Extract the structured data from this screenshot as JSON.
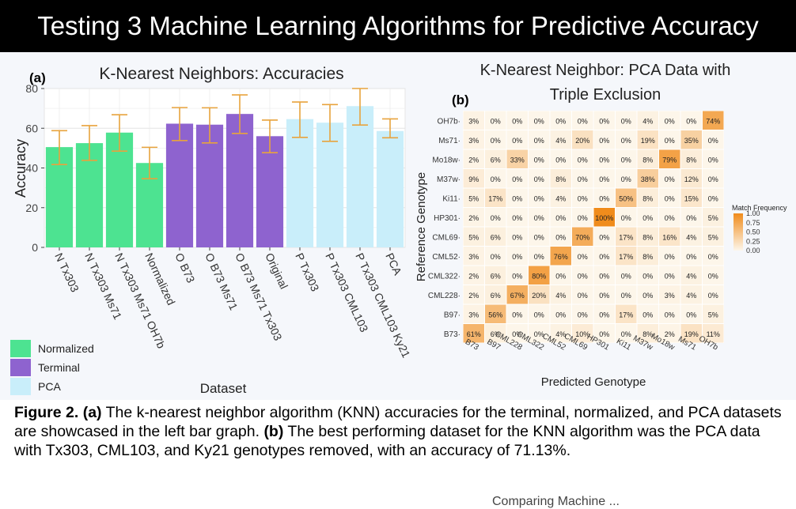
{
  "banner": {
    "title": "Testing 3 Machine Learning Algorithms for Predictive Accuracy"
  },
  "chart_data": [
    {
      "type": "bar",
      "panel_label": "(a)",
      "title": "K-Nearest Neighbors: Accuracies",
      "xlabel": "Dataset",
      "ylabel": "Accuracy",
      "ylim": [
        0,
        80
      ],
      "yticks": [
        0,
        20,
        40,
        60,
        80
      ],
      "grid": true,
      "categories": [
        "N Tx303",
        "N Tx303 Ms71",
        "N Tx303 Ms71 OH7b",
        "Normalized",
        "O B73",
        "O B73 Ms71",
        "O B73 Ms71 Tx303",
        "Original",
        "P Tx303",
        "P Tx303 CML103",
        "P Tx303 CML103 Ky21",
        "PCA"
      ],
      "values": [
        50.5,
        52.5,
        57.8,
        42.5,
        62.3,
        61.8,
        67.2,
        56.0,
        64.6,
        62.8,
        71.13,
        58.6
      ],
      "error_low": [
        41.7,
        43.8,
        48.5,
        34.6,
        53.8,
        52.6,
        57.4,
        47.7,
        55.4,
        53.4,
        61.6,
        55.2
      ],
      "error_high": [
        58.8,
        61.3,
        66.8,
        50.4,
        70.4,
        70.3,
        76.8,
        64.1,
        73.2,
        71.9,
        80.0,
        64.7
      ],
      "groups": [
        "Normalized",
        "Normalized",
        "Normalized",
        "Normalized",
        "Terminal",
        "Terminal",
        "Terminal",
        "Terminal",
        "PCA",
        "PCA",
        "PCA",
        "PCA"
      ],
      "legend": {
        "placement": "bottom-left",
        "entries": [
          {
            "name": "Normalized",
            "color": "#4de391"
          },
          {
            "name": "Terminal",
            "color": "#8e63cf"
          },
          {
            "name": "PCA",
            "color": "#c9eefa"
          }
        ]
      },
      "error_bar_color": "#e8a33d"
    },
    {
      "type": "heatmap",
      "panel_label": "(b)",
      "title": [
        "K-Nearest Neighbor: PCA Data with",
        "Triple Exclusion"
      ],
      "xlabel": "Predicted Genotype",
      "ylabel": "Reference Genotype",
      "x_categories": [
        "B73",
        "B97",
        "CML228",
        "CML322",
        "CML52",
        "CML69",
        "HP301",
        "Ki11",
        "M37w",
        "Mo18w",
        "Ms71",
        "OH7b"
      ],
      "y_categories_top_to_bottom": [
        "OH7b",
        "Ms71",
        "Mo18w",
        "M37w",
        "Ki11",
        "HP301",
        "CML69",
        "CML52",
        "CML322",
        "CML228",
        "B97",
        "B73"
      ],
      "values_percent": [
        [
          3,
          0,
          0,
          0,
          0,
          0,
          0,
          0,
          4,
          0,
          0,
          74
        ],
        [
          3,
          0,
          0,
          0,
          4,
          20,
          0,
          0,
          19,
          0,
          35,
          0
        ],
        [
          2,
          6,
          33,
          0,
          0,
          0,
          0,
          0,
          8,
          79,
          8,
          0
        ],
        [
          9,
          0,
          0,
          0,
          8,
          0,
          0,
          0,
          38,
          0,
          12,
          0
        ],
        [
          5,
          17,
          0,
          0,
          4,
          0,
          0,
          50,
          8,
          0,
          15,
          0
        ],
        [
          2,
          0,
          0,
          0,
          0,
          0,
          100,
          0,
          0,
          0,
          0,
          5
        ],
        [
          5,
          6,
          0,
          0,
          0,
          70,
          0,
          17,
          8,
          16,
          4,
          5
        ],
        [
          3,
          0,
          0,
          0,
          76,
          0,
          0,
          17,
          8,
          0,
          0,
          0
        ],
        [
          2,
          6,
          0,
          80,
          0,
          0,
          0,
          0,
          0,
          0,
          4,
          0
        ],
        [
          2,
          6,
          67,
          20,
          4,
          0,
          0,
          0,
          0,
          3,
          4,
          0
        ],
        [
          3,
          56,
          0,
          0,
          0,
          0,
          0,
          17,
          0,
          0,
          0,
          5
        ],
        [
          61,
          6,
          0,
          0,
          4,
          10,
          0,
          0,
          8,
          2,
          19,
          11
        ]
      ],
      "colorbar": {
        "title": "Match Frequency",
        "ticks": [
          "1.00",
          "0.75",
          "0.50",
          "0.25",
          "0.00"
        ],
        "low_color": "#fdf6ea",
        "high_color": "#f08c1c"
      }
    }
  ],
  "caption": {
    "fig_label": "Figure 2.",
    "part_a": "(a)",
    "text_a": " The k-nearest neighbor algorithm (KNN) accuracies for the terminal, normalized, and PCA datasets are showcased in the left bar graph. ",
    "part_b": "(b)",
    "text_b": " The best performing dataset for the KNN algorithm was the PCA data with Tx303, CML103, and Ky21 genotypes removed, with an accuracy of 71.13%."
  },
  "footer_fragment": "Comparing Machine ..."
}
